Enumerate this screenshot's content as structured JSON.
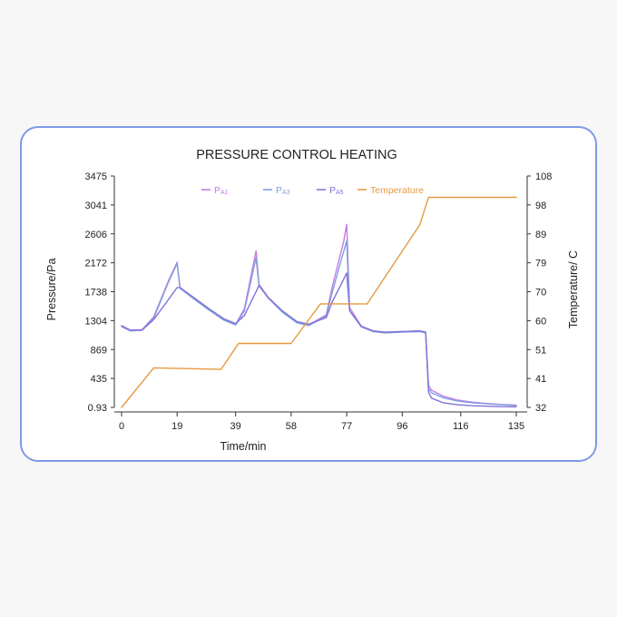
{
  "chart_data": {
    "type": "line",
    "title": "PRESSURE CONTROL HEATING",
    "xlabel": "Time/min",
    "ylabel_left": "Pressure/Pa",
    "ylabel_right": "Temperature/ C",
    "x_ticks": [
      "0",
      "19",
      "39",
      "58",
      "77",
      "96",
      "116",
      "135"
    ],
    "y_left_ticks": [
      "0.93",
      "435",
      "869",
      "1304",
      "1738",
      "2172",
      "2606",
      "3041",
      "3475"
    ],
    "y_right_ticks": [
      "32",
      "41",
      "51",
      "60",
      "70",
      "79",
      "89",
      "98",
      "108"
    ],
    "xlim": [
      0,
      135
    ],
    "ylim_left": [
      0.93,
      3475
    ],
    "ylim_right": [
      32,
      108
    ],
    "grid": false,
    "legend_position": "top",
    "series": [
      {
        "name": "PA1",
        "name_main": "P",
        "name_sub": "A1",
        "axis": "left",
        "color": "#c77be0",
        "x": [
          0,
          3,
          7,
          11,
          16,
          19,
          20,
          25,
          30,
          35,
          39,
          42,
          46,
          47,
          50,
          55,
          60,
          64,
          70,
          72,
          76,
          77,
          78,
          82,
          86,
          90,
          96,
          102,
          104,
          105,
          106,
          110,
          115,
          120,
          125,
          130,
          135
        ],
        "y": [
          1230,
          1160,
          1170,
          1360,
          1900,
          2180,
          1800,
          1630,
          1470,
          1320,
          1250,
          1480,
          2350,
          1850,
          1660,
          1440,
          1280,
          1240,
          1390,
          1800,
          2500,
          2750,
          1500,
          1220,
          1150,
          1130,
          1140,
          1150,
          1130,
          330,
          260,
          170,
          110,
          80,
          60,
          45,
          35
        ]
      },
      {
        "name": "PA3",
        "name_main": "P",
        "name_sub": "A3",
        "axis": "left",
        "color": "#7f9fe0",
        "x": [
          0,
          3,
          7,
          11,
          16,
          19,
          20,
          25,
          30,
          35,
          39,
          42,
          46,
          47,
          50,
          55,
          60,
          64,
          70,
          72,
          76,
          77,
          78,
          82,
          86,
          90,
          96,
          102,
          104,
          105,
          106,
          110,
          115,
          120,
          125,
          130,
          135
        ],
        "y": [
          1215,
          1150,
          1160,
          1340,
          1880,
          2160,
          1790,
          1620,
          1460,
          1310,
          1240,
          1450,
          2250,
          1830,
          1650,
          1430,
          1270,
          1230,
          1370,
          1720,
          2350,
          2500,
          1450,
          1210,
          1140,
          1120,
          1130,
          1140,
          1120,
          280,
          220,
          145,
          95,
          70,
          55,
          40,
          30
        ]
      },
      {
        "name": "PA5",
        "name_main": "P",
        "name_sub": "A5",
        "axis": "left",
        "color": "#8073d8",
        "x": [
          0,
          3,
          7,
          11,
          16,
          19,
          20,
          25,
          30,
          35,
          39,
          42,
          46,
          47,
          50,
          55,
          60,
          64,
          70,
          72,
          76,
          77,
          78,
          82,
          86,
          90,
          96,
          102,
          104,
          105,
          106,
          110,
          115,
          120,
          125,
          130,
          135
        ],
        "y": [
          1220,
          1160,
          1160,
          1320,
          1620,
          1800,
          1800,
          1640,
          1480,
          1330,
          1260,
          1380,
          1740,
          1830,
          1660,
          1450,
          1290,
          1250,
          1350,
          1580,
          1930,
          2020,
          1450,
          1220,
          1150,
          1130,
          1140,
          1150,
          1130,
          230,
          140,
          70,
          40,
          25,
          18,
          12,
          10
        ]
      },
      {
        "name": "Temperature",
        "axis": "right",
        "color": "#e69a40",
        "x": [
          0,
          11,
          34,
          40,
          58,
          68,
          84,
          102,
          105,
          106,
          135
        ],
        "y": [
          32,
          45,
          44.5,
          53,
          53,
          66,
          66,
          92,
          101,
          101,
          101
        ]
      }
    ]
  }
}
